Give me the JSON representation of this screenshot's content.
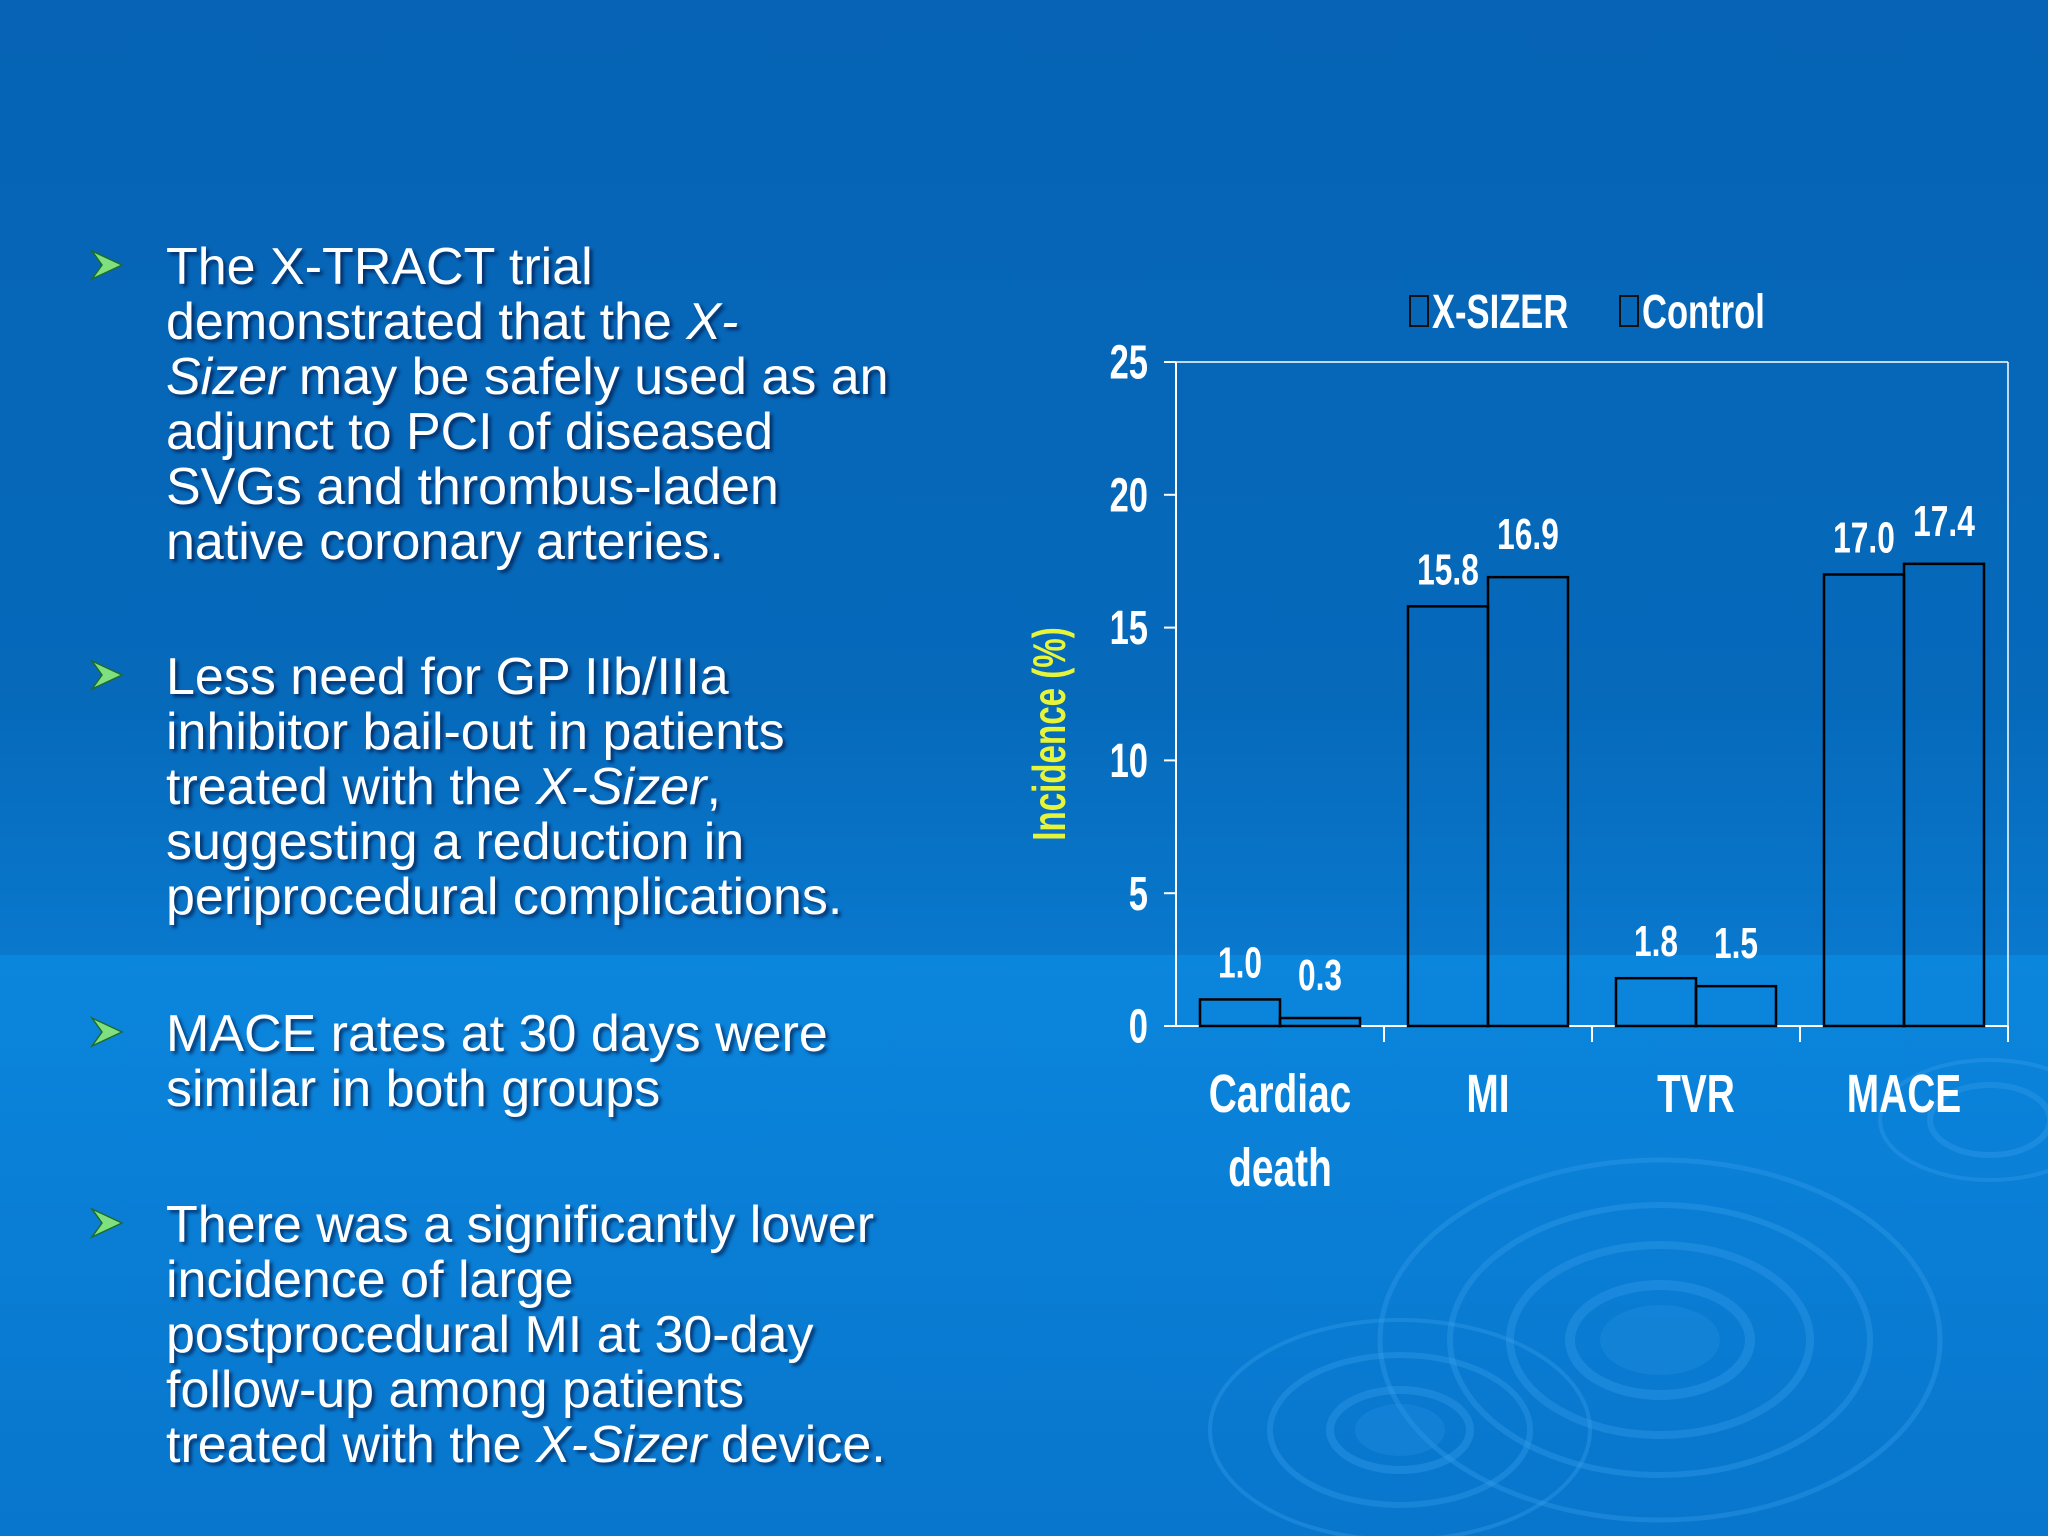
{
  "bullets": [
    {
      "parts": [
        {
          "t": "The X-TRACT trial"
        },
        {
          "br": true
        },
        {
          "t": "demonstrated that the "
        },
        {
          "t": "X-",
          "i": true
        },
        {
          "br": true
        },
        {
          "t": "Sizer",
          "i": true
        },
        {
          "t": " may be safely used as an"
        },
        {
          "br": true
        },
        {
          "t": "adjunct to PCI of diseased"
        },
        {
          "br": true
        },
        {
          "t": "SVGs and thrombus-laden"
        },
        {
          "br": true
        },
        {
          "t": "native coronary arteries."
        }
      ]
    },
    {
      "parts": [
        {
          "t": " Less need for GP IIb/IIIa"
        },
        {
          "br": true
        },
        {
          "t": "inhibitor bail-out in patients"
        },
        {
          "br": true
        },
        {
          "t": "treated with the "
        },
        {
          "t": "X-Sizer",
          "i": true
        },
        {
          "t": ","
        },
        {
          "br": true
        },
        {
          "t": "suggesting a reduction in"
        },
        {
          "br": true
        },
        {
          "t": "periprocedural complications."
        }
      ]
    },
    {
      "parts": [
        {
          "t": "MACE rates at 30 days were"
        },
        {
          "br": true
        },
        {
          "t": "similar in both groups"
        }
      ]
    },
    {
      "parts": [
        {
          "t": "There was a significantly lower"
        },
        {
          "br": true
        },
        {
          "t": "incidence of large"
        },
        {
          "br": true
        },
        {
          "t": "postprocedural MI at 30-day"
        },
        {
          "br": true
        },
        {
          "t": "follow-up among patients"
        },
        {
          "br": true
        },
        {
          "t": "treated with the "
        },
        {
          "t": "X-Sizer",
          "i": true
        },
        {
          "t": " device."
        }
      ]
    }
  ],
  "colors": {
    "bullet_arrow": "#7fe07f",
    "ylabel": "#e6f53a",
    "chart_text": "#ffffff",
    "bar_outline": "#000000"
  },
  "chart_data": {
    "type": "bar",
    "categories": [
      "Cardiac death",
      "MI",
      "TVR",
      "MACE"
    ],
    "category_lines": [
      [
        "Cardiac",
        "death"
      ],
      [
        "MI"
      ],
      [
        "TVR"
      ],
      [
        "MACE"
      ]
    ],
    "series": [
      {
        "name": "X-SIZER",
        "values": [
          1.0,
          15.8,
          1.8,
          17.0
        ],
        "labels": [
          "1.0",
          "15.8",
          "1.8",
          "17.0"
        ]
      },
      {
        "name": "Control",
        "values": [
          0.3,
          16.9,
          1.5,
          17.4
        ],
        "labels": [
          "0.3",
          "16.9",
          "1.5",
          "17.4"
        ]
      }
    ],
    "title": "",
    "xlabel": "",
    "ylabel": "Incidence (%)",
    "ylim": [
      0,
      25
    ],
    "yticks": [
      0,
      5,
      10,
      15,
      20,
      25
    ],
    "grid": false,
    "legend_position": "top"
  }
}
